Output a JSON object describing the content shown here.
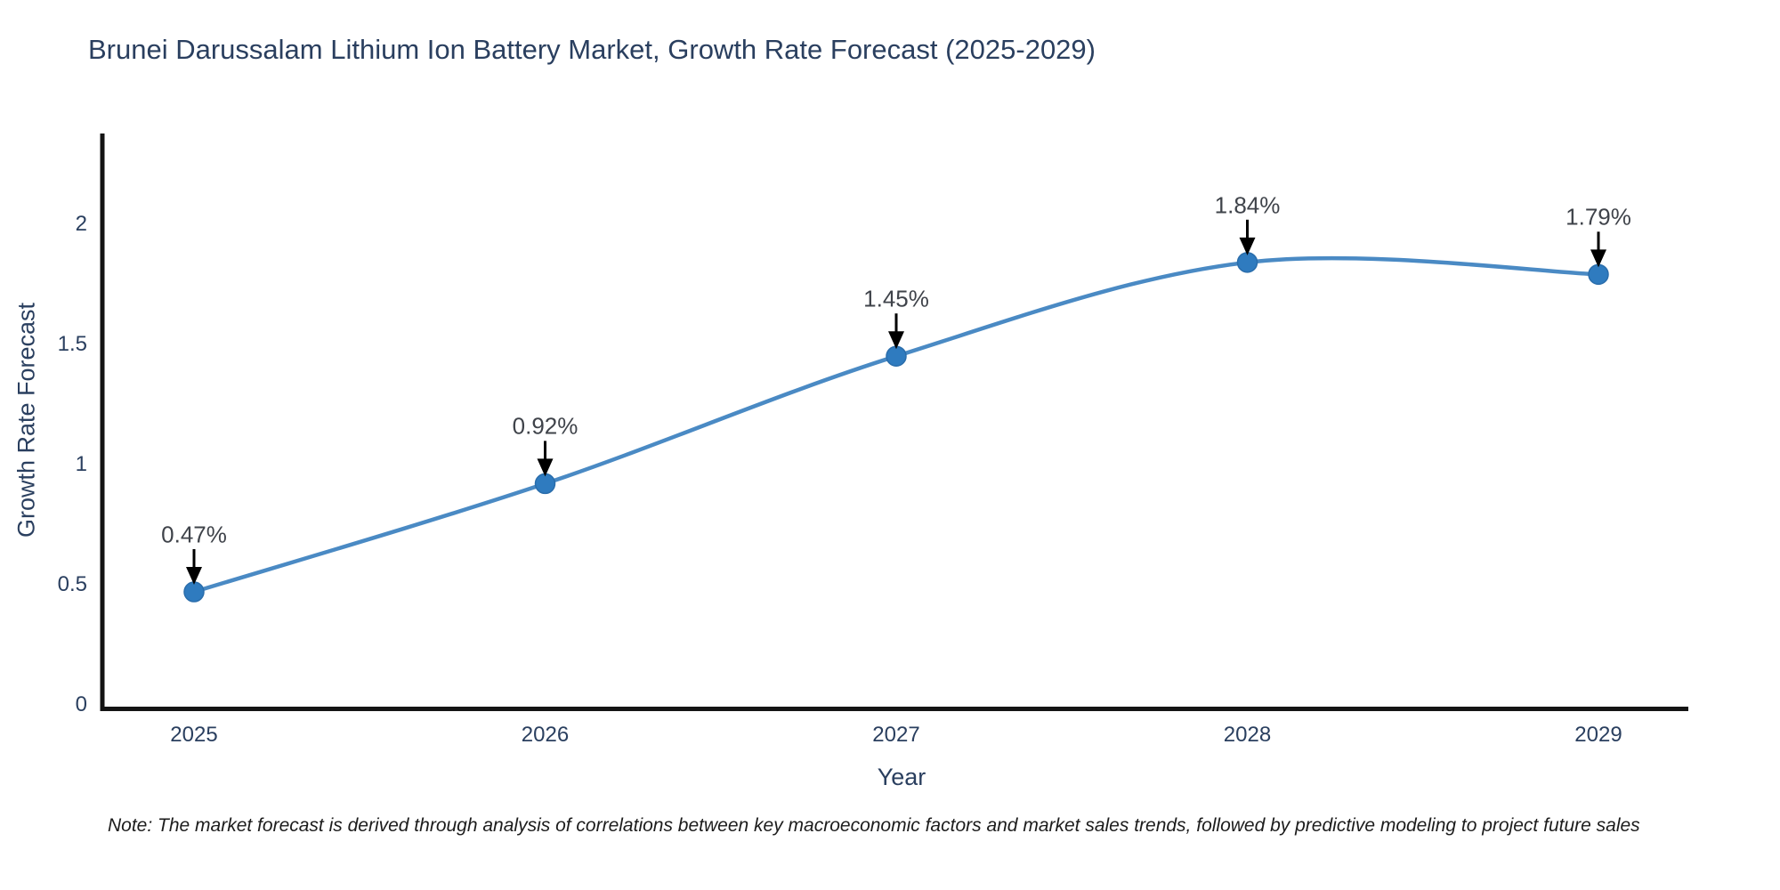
{
  "chart": {
    "note": "Note: The market forecast is derived through analysis of correlations between key macroeconomic factors and market sales trends, followed by predictive modeling to project future sales",
    "colors": {
      "line": "#4a8ac4",
      "marker_fill": "#2f7bbf",
      "marker_edge": "#2a6dab",
      "axis_line": "#141414",
      "arrow": "#000000",
      "title_text": "#2a3f5f",
      "tick_text": "#2a3f5f",
      "annotation_text": "#3f434a"
    }
  },
  "chart_data": {
    "type": "line",
    "title": "Brunei Darussalam Lithium Ion Battery Market, Growth Rate Forecast (2025-2029)",
    "xlabel": "Year",
    "ylabel": "Growth Rate Forecast",
    "x": [
      2025,
      2026,
      2027,
      2028,
      2029
    ],
    "values": [
      0.47,
      0.92,
      1.45,
      1.84,
      1.79
    ],
    "point_labels": [
      "0.47%",
      "0.92%",
      "1.45%",
      "1.84%",
      "1.79%"
    ],
    "yticks": [
      0,
      0.5,
      1,
      1.5,
      2
    ],
    "ylim": [
      0,
      2.38
    ],
    "grid": false,
    "legend_visible": false,
    "line_shape": "spline",
    "markers": true,
    "annotation_style": "value-label-with-down-arrow"
  }
}
